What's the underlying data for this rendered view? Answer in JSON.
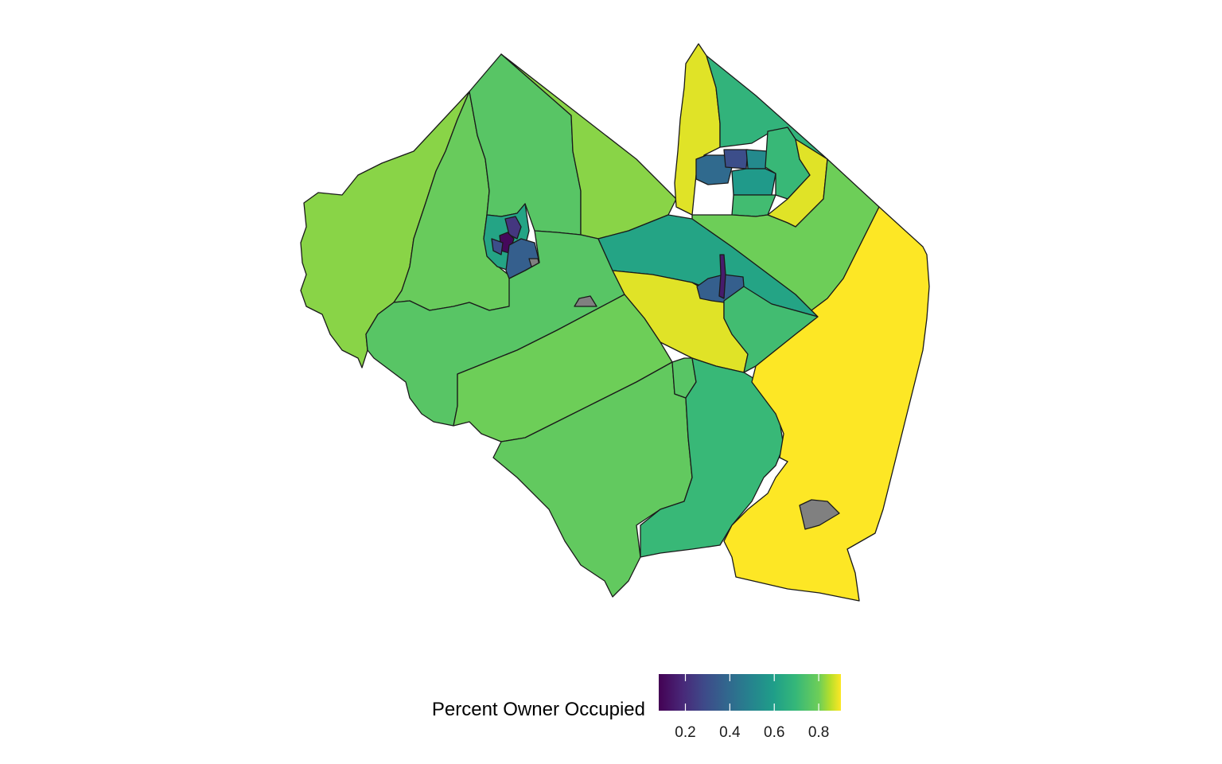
{
  "chart_data": {
    "type": "choropleth",
    "legend": {
      "title": "Percent Owner Occupied",
      "placement": "bottom",
      "scale": "viridis",
      "range": [
        0.08,
        0.9
      ],
      "ticks": [
        0.2,
        0.4,
        0.6,
        0.8
      ],
      "tick_labels": [
        "0.2",
        "0.4",
        "0.6",
        "0.8"
      ],
      "na_color": "#808080"
    },
    "regions": [
      {
        "id": "west-far",
        "value": 0.82
      },
      {
        "id": "west-north",
        "value": 0.79
      },
      {
        "id": "north-center",
        "value": 0.76
      },
      {
        "id": "north-east",
        "value": 0.82
      },
      {
        "id": "west-town-outer",
        "value": 0.62
      },
      {
        "id": "west-town-a",
        "value": 0.23
      },
      {
        "id": "west-town-b",
        "value": 0.1
      },
      {
        "id": "west-town-c",
        "value": 0.3
      },
      {
        "id": "west-town-d",
        "value": 0.36
      },
      {
        "id": "west-town-na",
        "value": null
      },
      {
        "id": "center-west",
        "value": 0.76
      },
      {
        "id": "center-na",
        "value": null
      },
      {
        "id": "center-strip",
        "value": 0.62
      },
      {
        "id": "center-yellow",
        "value": 0.88
      },
      {
        "id": "center-town",
        "value": 0.36
      },
      {
        "id": "center-town-core",
        "value": 0.15
      },
      {
        "id": "center-south",
        "value": 0.72
      },
      {
        "id": "south-west",
        "value": 0.8
      },
      {
        "id": "south-central",
        "value": 0.78
      },
      {
        "id": "south-lime",
        "value": 0.76
      },
      {
        "id": "south-green",
        "value": 0.7
      },
      {
        "id": "north-yellow",
        "value": 0.88
      },
      {
        "id": "north-green-strip",
        "value": 0.68
      },
      {
        "id": "north-town-a",
        "value": 0.4
      },
      {
        "id": "north-town-b",
        "value": 0.3
      },
      {
        "id": "north-town-c",
        "value": 0.52
      },
      {
        "id": "north-town-d",
        "value": 0.58
      },
      {
        "id": "north-town-e",
        "value": 0.7
      },
      {
        "id": "north-town-f",
        "value": 0.72
      },
      {
        "id": "northeast-yellow",
        "value": 0.88
      },
      {
        "id": "northeast-lime",
        "value": 0.8
      },
      {
        "id": "east-yellow",
        "value": 0.9
      },
      {
        "id": "east-na",
        "value": null
      }
    ]
  }
}
